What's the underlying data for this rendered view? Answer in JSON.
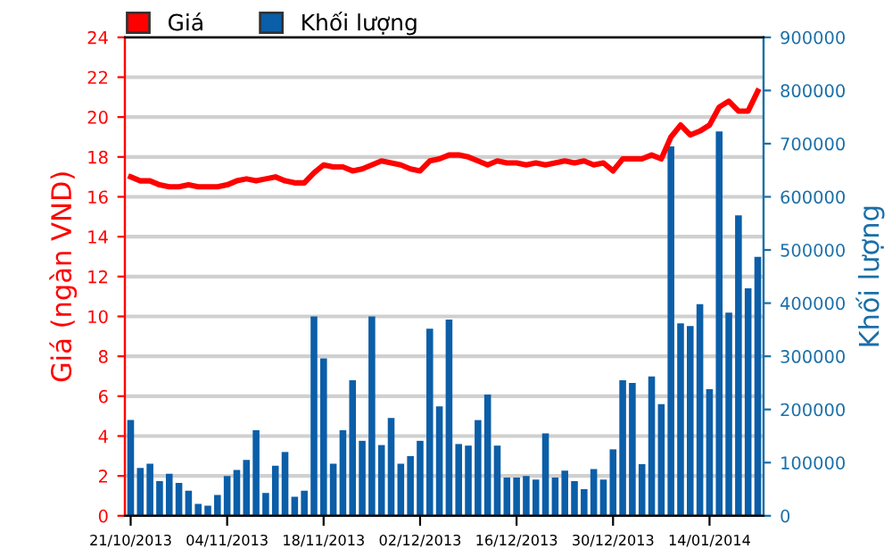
{
  "chart_data": {
    "type": "bar",
    "categories": [
      "21/10/2013",
      null,
      null,
      null,
      null,
      null,
      null,
      null,
      null,
      null,
      "04/11/2013",
      null,
      null,
      null,
      null,
      null,
      null,
      null,
      null,
      null,
      "18/11/2013",
      null,
      null,
      null,
      null,
      null,
      null,
      null,
      null,
      null,
      "02/12/2013",
      null,
      null,
      null,
      null,
      null,
      null,
      null,
      null,
      null,
      "16/12/2013",
      null,
      null,
      null,
      null,
      null,
      null,
      null,
      null,
      null,
      "30/12/2013",
      null,
      null,
      null,
      null,
      null,
      null,
      null,
      null,
      null,
      "14/01/2014",
      null,
      null,
      null,
      null,
      null
    ],
    "series": [
      {
        "name": "Khối lượng",
        "axis": "y2",
        "color": "#0b5ea8",
        "values": [
          180000,
          90000,
          98000,
          65000,
          79000,
          62000,
          47000,
          22500,
          19000,
          39000,
          75000,
          86000,
          105000,
          161000,
          43000,
          94000,
          120000,
          36000,
          47000,
          375000,
          296000,
          98000,
          161000,
          255000,
          141000,
          375000,
          133000,
          184000,
          98000,
          112000,
          141000,
          352000,
          206000,
          369000,
          135000,
          132000,
          180000,
          228000,
          132000,
          72000,
          72000,
          75000,
          68000,
          155000,
          72000,
          85000,
          65000,
          50000,
          88000,
          68000,
          125000,
          255000,
          250000,
          97000,
          262000,
          210000,
          695000,
          362000,
          357000,
          398000,
          238000,
          723000,
          382000,
          565000,
          428000,
          487000
        ]
      },
      {
        "name": "Giá",
        "type": "line",
        "color": "#ff0000",
        "values": [
          17.0,
          16.8,
          16.8,
          16.6,
          16.5,
          16.5,
          16.6,
          16.5,
          16.5,
          16.5,
          16.6,
          16.8,
          16.9,
          16.8,
          16.9,
          17.0,
          16.8,
          16.7,
          16.7,
          17.2,
          17.6,
          17.5,
          17.5,
          17.3,
          17.4,
          17.6,
          17.8,
          17.7,
          17.6,
          17.4,
          17.3,
          17.8,
          17.9,
          18.1,
          18.1,
          18.0,
          17.8,
          17.6,
          17.8,
          17.7,
          17.7,
          17.6,
          17.7,
          17.6,
          17.7,
          17.8,
          17.7,
          17.8,
          17.6,
          17.7,
          17.3,
          17.9,
          17.9,
          17.9,
          18.1,
          17.9,
          19.0,
          19.6,
          19.1,
          19.3,
          19.6,
          20.5,
          20.8,
          20.3,
          20.3,
          21.3
        ]
      }
    ],
    "ylabel": "Giá (ngàn VND)",
    "y2label": "Khối lượng",
    "ylim": [
      0,
      24
    ],
    "yticks": [
      0,
      2,
      4,
      6,
      8,
      10,
      12,
      14,
      16,
      18,
      20,
      22,
      24
    ],
    "y2lim": [
      0,
      900000
    ],
    "y2ticks": [
      0,
      100000,
      200000,
      300000,
      400000,
      500000,
      600000,
      700000,
      800000,
      900000
    ],
    "grid": "y",
    "legend": "top left"
  }
}
